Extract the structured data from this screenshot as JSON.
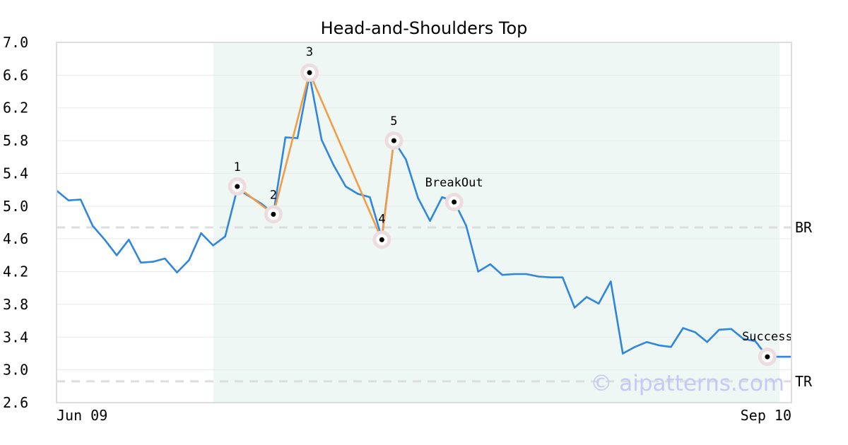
{
  "chart_data": {
    "type": "line",
    "title": "Head-and-Shoulders Top",
    "xlabel": "",
    "ylabel": "",
    "ylim": [
      2.6,
      7.0
    ],
    "y_ticks": [
      "7.0",
      "6.6",
      "6.2",
      "5.8",
      "5.4",
      "5.0",
      "4.6",
      "4.2",
      "3.8",
      "3.4",
      "3.0",
      "2.6"
    ],
    "x_tick_labels": [
      "Jun 09",
      "Sep 10"
    ],
    "grid": true,
    "series": [
      {
        "color": "#2e86de",
        "values": [
          5.19,
          5.07,
          5.08,
          4.76,
          4.59,
          4.4,
          4.59,
          4.31,
          4.32,
          4.36,
          4.19,
          4.34,
          4.67,
          4.52,
          4.63,
          5.21,
          5.12,
          5.03,
          4.91,
          5.84,
          5.83,
          6.6,
          5.81,
          5.5,
          5.24,
          5.15,
          5.11,
          4.61,
          5.8,
          5.57,
          5.1,
          4.82,
          5.11,
          5.06,
          4.76,
          4.2,
          4.29,
          4.16,
          4.17,
          4.17,
          4.14,
          4.13,
          4.13,
          3.76,
          3.89,
          3.81,
          4.08,
          3.2,
          3.28,
          3.34,
          3.3,
          3.28,
          3.51,
          3.46,
          3.34,
          3.49,
          3.5,
          3.38,
          3.35,
          3.16,
          3.16,
          3.16
        ]
      }
    ],
    "pattern_line": {
      "color": "#f39c46",
      "indices": [
        15,
        18,
        21,
        27,
        28
      ]
    },
    "points": [
      {
        "label": "1",
        "index": 15,
        "value": 5.24
      },
      {
        "label": "2",
        "index": 18,
        "value": 4.9
      },
      {
        "label": "3",
        "index": 21,
        "value": 6.63
      },
      {
        "label": "4",
        "index": 27,
        "value": 4.59
      },
      {
        "label": "5",
        "index": 28,
        "value": 5.8
      },
      {
        "label": "BreakOut",
        "index": 33,
        "value": 5.05
      },
      {
        "label": "Success",
        "index": 59,
        "value": 3.16
      }
    ],
    "levels": [
      {
        "label": "BR",
        "value": 4.74
      },
      {
        "label": "TR",
        "value": 2.86
      }
    ],
    "highlight_range": [
      13,
      60
    ],
    "colors": {
      "line": "#2e86de",
      "pattern": "#f39c46",
      "highlight": "#eef7f3",
      "marker_halo": "#ecdcdf"
    },
    "watermark": "© aipatterns.com"
  }
}
